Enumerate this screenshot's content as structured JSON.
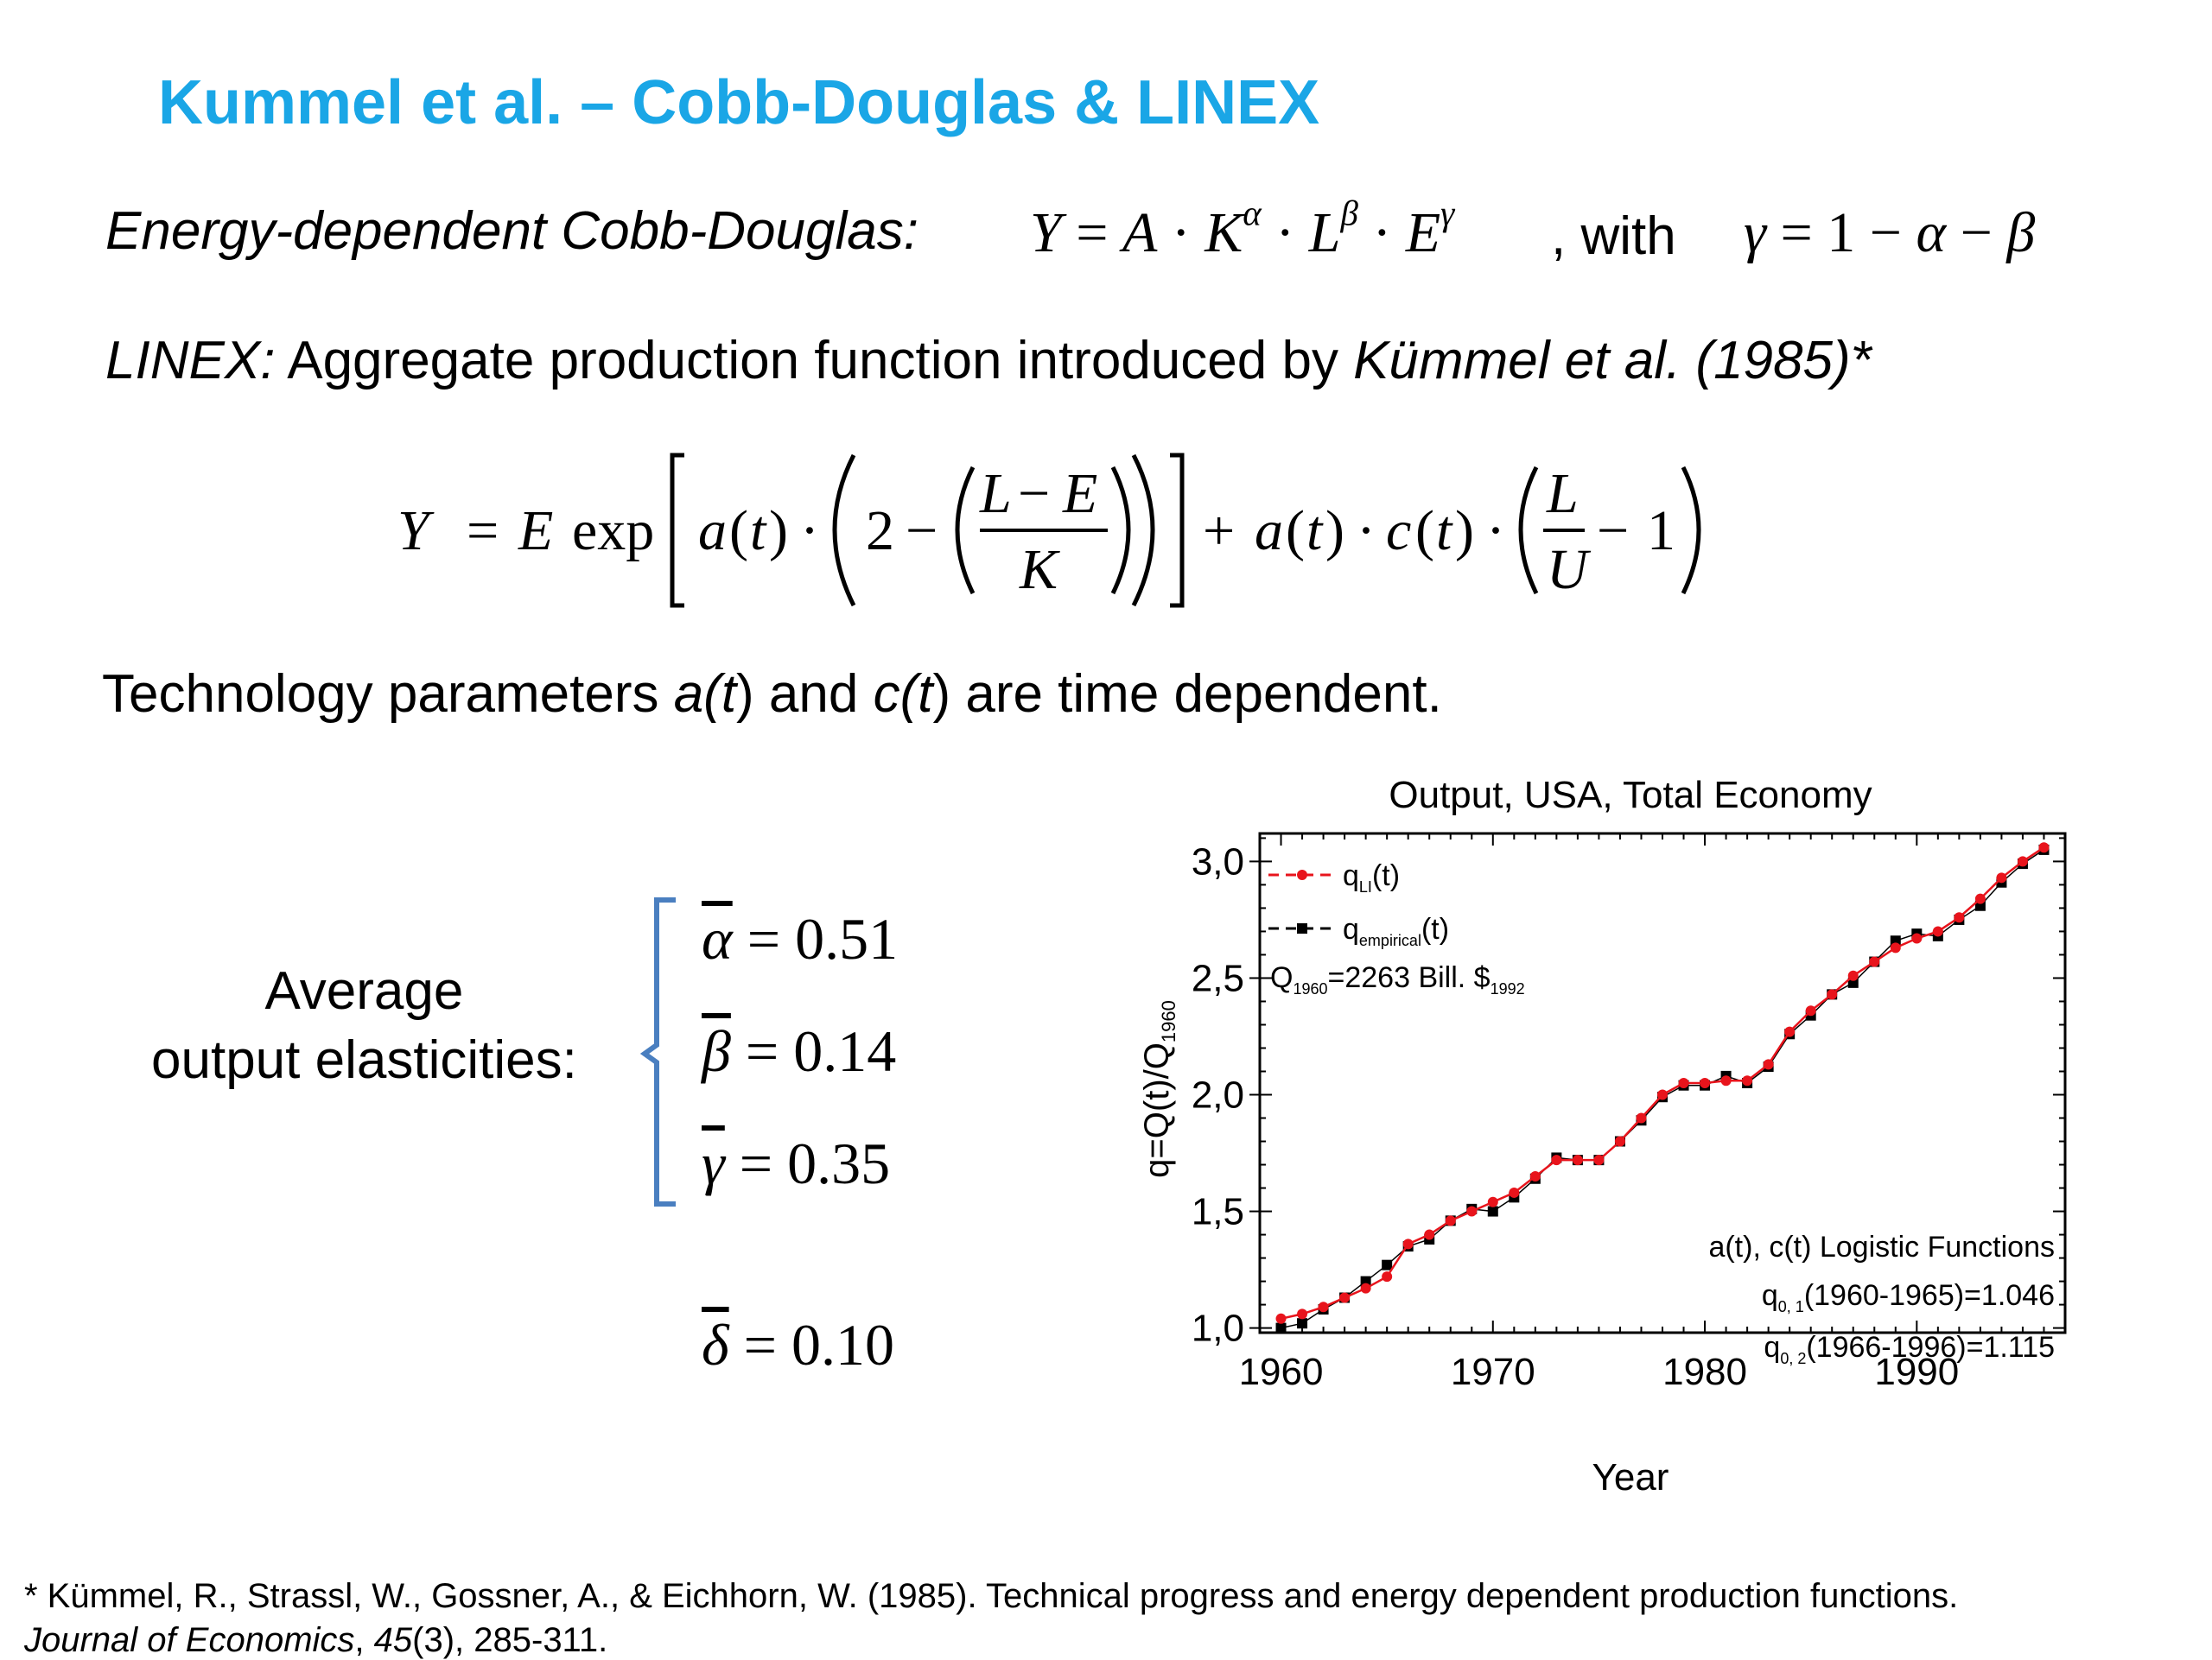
{
  "slide": {
    "title": "Kummel et al. – Cobb-Douglas & LINEX",
    "cobb_douglas_label": "Energy-dependent Cobb-Douglas:",
    "cobb_douglas_with": ", with",
    "linex_label": "LINEX:",
    "linex_description": " Aggregate production function introduced by ",
    "linex_citation": "Kümmel et al. (1985)*",
    "tech_text_1": "Technology parameters ",
    "tech_a": "a(t",
    "tech_text_2": ") and ",
    "tech_c": "c(t",
    "tech_text_3": ") are time dependent.",
    "elasticities_label_1": "Average",
    "elasticities_label_2": "output elasticities:",
    "alpha_value": "0.51",
    "beta_value": "0.14",
    "gamma_value": "0.35",
    "delta_value": "0.10",
    "footnote_line1": "* Kümmel, R., Strassl, W., Gossner, A., & Eichhorn, W. (1985). Technical progress and energy dependent production functions.",
    "footnote_journal": "Journal of Economics",
    "footnote_sep": ", ",
    "footnote_volume": "45",
    "footnote_rest": "(3), 285-311."
  },
  "colors": {
    "title": "#1aa6e6",
    "bracket": "#4a7fc0",
    "series_linex": "#e8141c",
    "series_empirical": "#000000"
  },
  "chart_data": {
    "type": "line",
    "title": "Output, USA, Total Economy",
    "xlabel": "Year",
    "ylabel": "q=Q(t)/Q",
    "ylabel_sub": "1960",
    "xlim": [
      1959,
      1997
    ],
    "ylim": [
      0.98,
      3.12
    ],
    "xticks": [
      1960,
      1970,
      1980,
      1990
    ],
    "yticks": [
      1.0,
      1.5,
      2.0,
      2.5,
      3.0
    ],
    "ytick_labels": [
      "1,0",
      "1,5",
      "2,0",
      "2,5",
      "3,0"
    ],
    "legend_position": "top-left",
    "series": [
      {
        "name": "q",
        "name_sub": "LI",
        "name_suffix": "(t)",
        "color": "#e8141c",
        "marker": "circle",
        "x": [
          1960,
          1961,
          1962,
          1963,
          1964,
          1965,
          1966,
          1967,
          1968,
          1969,
          1970,
          1971,
          1972,
          1973,
          1974,
          1975,
          1976,
          1977,
          1978,
          1979,
          1980,
          1981,
          1982,
          1983,
          1984,
          1985,
          1986,
          1987,
          1988,
          1989,
          1990,
          1991,
          1992,
          1993,
          1994,
          1995,
          1996
        ],
        "y": [
          1.04,
          1.06,
          1.09,
          1.13,
          1.17,
          1.22,
          1.36,
          1.4,
          1.46,
          1.5,
          1.54,
          1.58,
          1.65,
          1.72,
          1.72,
          1.72,
          1.8,
          1.9,
          2.0,
          2.05,
          2.05,
          2.06,
          2.06,
          2.13,
          2.27,
          2.36,
          2.43,
          2.51,
          2.57,
          2.63,
          2.67,
          2.7,
          2.76,
          2.84,
          2.93,
          3.0,
          3.06
        ]
      },
      {
        "name": "q",
        "name_sub": "empirical",
        "name_suffix": "(t)",
        "color": "#000000",
        "marker": "square",
        "x": [
          1960,
          1961,
          1962,
          1963,
          1964,
          1965,
          1966,
          1967,
          1968,
          1969,
          1970,
          1971,
          1972,
          1973,
          1974,
          1975,
          1976,
          1977,
          1978,
          1979,
          1980,
          1981,
          1982,
          1983,
          1984,
          1985,
          1986,
          1987,
          1988,
          1989,
          1990,
          1991,
          1992,
          1993,
          1994,
          1995,
          1996
        ],
        "y": [
          1.0,
          1.02,
          1.08,
          1.13,
          1.2,
          1.27,
          1.35,
          1.38,
          1.46,
          1.51,
          1.5,
          1.56,
          1.64,
          1.73,
          1.72,
          1.72,
          1.8,
          1.89,
          1.99,
          2.04,
          2.04,
          2.08,
          2.05,
          2.12,
          2.26,
          2.34,
          2.43,
          2.48,
          2.57,
          2.66,
          2.69,
          2.68,
          2.75,
          2.81,
          2.91,
          2.99,
          3.05
        ]
      }
    ],
    "annotations": {
      "q1960_prefix": "Q",
      "q1960_sub": "1960",
      "q1960_value": "=2263 Bill. $",
      "q1960_unit_sub": "1992",
      "logistic": "a(t), c(t) Logistic Functions",
      "q01_main": "q",
      "q01_sub": "0, 1",
      "q01_text": "(1960-1965)=1.046",
      "q02_main": "q",
      "q02_sub": "0, 2",
      "q02_text": "(1966-1996)=1.115"
    }
  }
}
